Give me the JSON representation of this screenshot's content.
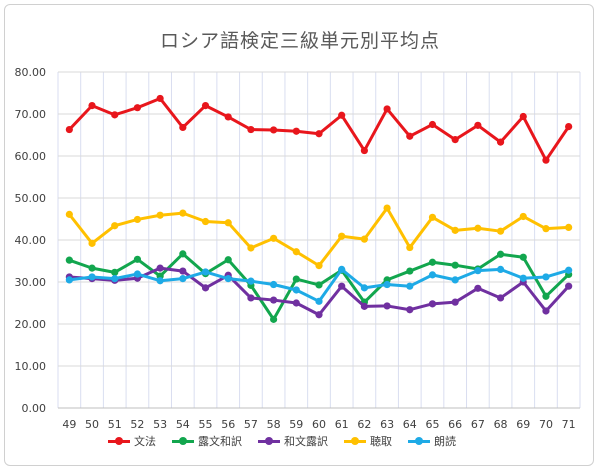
{
  "chart_data": {
    "type": "line",
    "title": "ロシア語検定三級単元別平均点",
    "xlabel": "",
    "ylabel": "",
    "categories": [
      "49",
      "50",
      "51",
      "52",
      "53",
      "54",
      "55",
      "56",
      "57",
      "58",
      "59",
      "60",
      "61",
      "62",
      "63",
      "64",
      "65",
      "66",
      "67",
      "68",
      "69",
      "70",
      "71"
    ],
    "ylim": [
      0,
      80
    ],
    "yticks": [
      "0.00",
      "10.00",
      "20.00",
      "30.00",
      "40.00",
      "50.00",
      "60.00",
      "70.00",
      "80.00"
    ],
    "grid": true,
    "legend_position": "bottom",
    "series": [
      {
        "name": "文法",
        "color": "#e8161c",
        "values": [
          66.3,
          72.0,
          69.8,
          71.5,
          73.7,
          66.8,
          72.0,
          69.3,
          66.3,
          66.2,
          65.9,
          65.3,
          69.7,
          61.3,
          71.2,
          64.7,
          67.5,
          63.9,
          67.3,
          63.3,
          69.4,
          59.0,
          67.0
        ]
      },
      {
        "name": "露文和訳",
        "color": "#12a64e",
        "values": [
          35.2,
          33.3,
          32.3,
          35.4,
          31.4,
          36.7,
          32.0,
          35.3,
          29.2,
          21.1,
          30.7,
          29.3,
          32.8,
          25.2,
          30.5,
          32.6,
          34.7,
          34.0,
          33.1,
          36.6,
          35.9,
          26.6,
          31.8
        ]
      },
      {
        "name": "和文露訳",
        "color": "#7030a0",
        "values": [
          31.2,
          30.8,
          30.4,
          30.9,
          33.3,
          32.6,
          28.6,
          31.6,
          26.2,
          25.7,
          25.0,
          22.2,
          29.0,
          24.2,
          24.3,
          23.4,
          24.8,
          25.2,
          28.5,
          26.2,
          30.0,
          23.1,
          29.0
        ]
      },
      {
        "name": "聴取",
        "color": "#ffc000",
        "values": [
          46.1,
          39.2,
          43.4,
          44.9,
          45.9,
          46.4,
          44.4,
          44.1,
          38.1,
          40.4,
          37.2,
          33.9,
          40.9,
          40.2,
          47.6,
          38.2,
          45.4,
          42.3,
          42.8,
          42.1,
          45.6,
          42.7,
          43.0
        ]
      },
      {
        "name": "朗読",
        "color": "#1eaae6",
        "values": [
          30.5,
          31.2,
          30.8,
          31.9,
          30.3,
          30.8,
          32.4,
          30.8,
          30.2,
          29.4,
          28.1,
          25.4,
          33.0,
          28.6,
          29.4,
          29.0,
          31.7,
          30.5,
          32.7,
          33.0,
          30.9,
          31.2,
          32.8
        ]
      }
    ]
  }
}
